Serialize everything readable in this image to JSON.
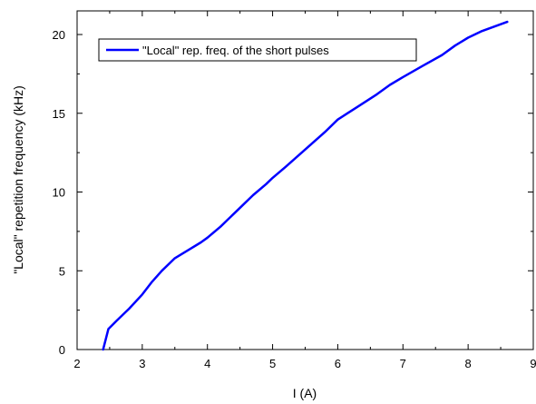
{
  "chart_data": {
    "type": "line",
    "xlabel": "I (A)",
    "ylabel": "\"Local\" repetition frequency (kHz)",
    "xlim": [
      2,
      9
    ],
    "ylim": [
      0,
      21.5
    ],
    "xticks": [
      2,
      3,
      4,
      5,
      6,
      7,
      8,
      9
    ],
    "yticks": [
      0,
      5,
      10,
      15,
      20
    ],
    "grid": false,
    "legend_position": "top-left",
    "series": [
      {
        "name": "\"Local\" rep. freq. of the short pulses",
        "color": "#0000ff",
        "x": [
          2.4,
          2.48,
          2.6,
          2.8,
          3.0,
          3.15,
          3.3,
          3.5,
          3.7,
          3.9,
          4.0,
          4.2,
          4.45,
          4.7,
          4.9,
          5.0,
          5.2,
          5.5,
          5.8,
          6.0,
          6.3,
          6.6,
          6.8,
          7.0,
          7.3,
          7.6,
          7.8,
          8.0,
          8.2,
          8.4,
          8.6
        ],
        "y": [
          0.0,
          1.3,
          1.8,
          2.6,
          3.5,
          4.3,
          5.0,
          5.8,
          6.3,
          6.8,
          7.1,
          7.8,
          8.8,
          9.8,
          10.5,
          10.9,
          11.6,
          12.7,
          13.8,
          14.6,
          15.4,
          16.2,
          16.8,
          17.3,
          18.0,
          18.7,
          19.3,
          19.8,
          20.2,
          20.5,
          20.8
        ]
      }
    ]
  }
}
